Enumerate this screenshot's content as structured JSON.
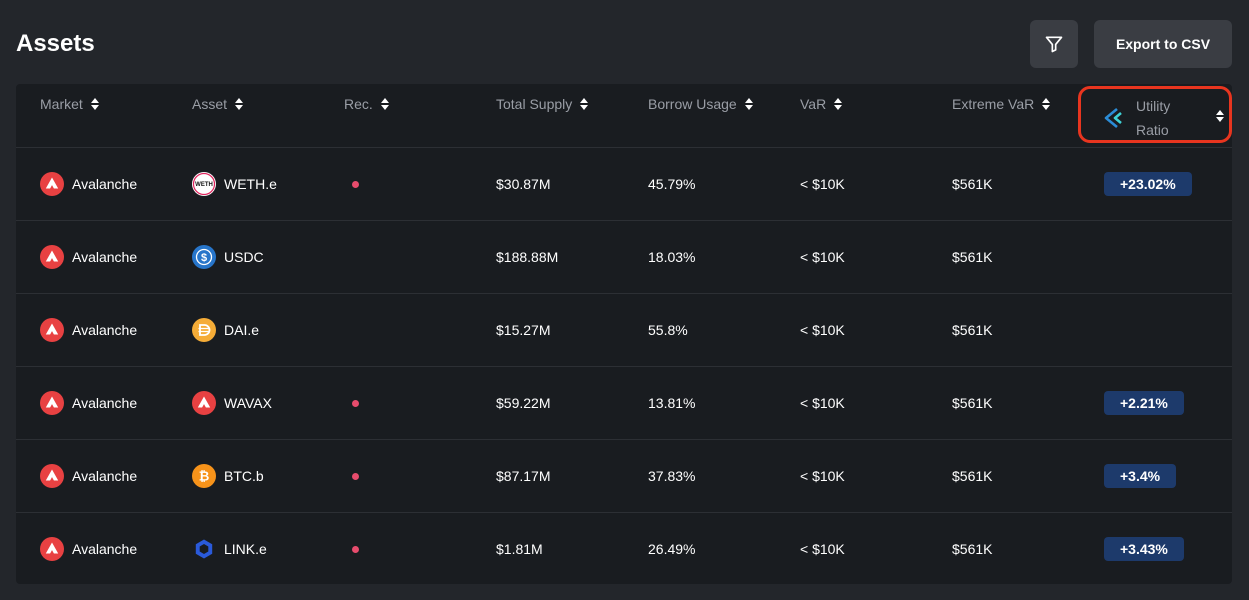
{
  "page": {
    "title": "Assets"
  },
  "toolbar": {
    "export_label": "Export to CSV"
  },
  "table": {
    "headers": {
      "market": "Market",
      "asset": "Asset",
      "rec": "Rec.",
      "total_supply": "Total Supply",
      "borrow_usage": "Borrow Usage",
      "var": "VaR",
      "extreme_var": "Extreme VaR",
      "utility_line1": "Utility",
      "utility_line2": "Ratio"
    },
    "rows": [
      {
        "market": "Avalanche",
        "asset": "WETH.e",
        "asset_icon": "weth-icon",
        "rec": true,
        "total_supply": "$30.87M",
        "borrow_usage": "45.79%",
        "var": "< $10K",
        "extreme_var": "$561K",
        "utility": "+23.02%"
      },
      {
        "market": "Avalanche",
        "asset": "USDC",
        "asset_icon": "usdc-icon",
        "rec": false,
        "total_supply": "$188.88M",
        "borrow_usage": "18.03%",
        "var": "< $10K",
        "extreme_var": "$561K",
        "utility": ""
      },
      {
        "market": "Avalanche",
        "asset": "DAI.e",
        "asset_icon": "dai-icon",
        "rec": false,
        "total_supply": "$15.27M",
        "borrow_usage": "55.8%",
        "var": "< $10K",
        "extreme_var": "$561K",
        "utility": ""
      },
      {
        "market": "Avalanche",
        "asset": "WAVAX",
        "asset_icon": "avax-icon",
        "rec": true,
        "total_supply": "$59.22M",
        "borrow_usage": "13.81%",
        "var": "< $10K",
        "extreme_var": "$561K",
        "utility": "+2.21%"
      },
      {
        "market": "Avalanche",
        "asset": "BTC.b",
        "asset_icon": "btc-icon",
        "rec": true,
        "total_supply": "$87.17M",
        "borrow_usage": "37.83%",
        "var": "< $10K",
        "extreme_var": "$561K",
        "utility": "+3.4%"
      },
      {
        "market": "Avalanche",
        "asset": "LINK.e",
        "asset_icon": "chainlink-icon",
        "rec": true,
        "total_supply": "$1.81M",
        "borrow_usage": "26.49%",
        "var": "< $10K",
        "extreme_var": "$561K",
        "utility": "+3.43%"
      }
    ]
  },
  "colors": {
    "background": "#23262b",
    "table_bg": "#191c20",
    "highlight": "#e8351f",
    "badge": "#1d3a6b",
    "rec_dot": "#e74c6d",
    "avalanche": "#e84142"
  }
}
